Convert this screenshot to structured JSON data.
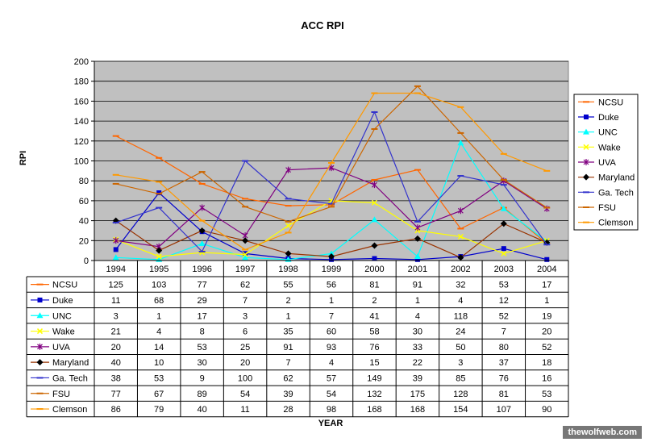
{
  "watermark": "thewolfweb.com",
  "chart_data": {
    "type": "line",
    "title": "ACC RPI",
    "xlabel": "YEAR",
    "ylabel": "RPI",
    "ylim": [
      0,
      200
    ],
    "yticks": [
      0,
      20,
      40,
      60,
      80,
      100,
      120,
      140,
      160,
      180,
      200
    ],
    "grid": true,
    "legend_position": "right",
    "plot_background": "#c0c0c0",
    "categories": [
      "1994",
      "1995",
      "1996",
      "1997",
      "1998",
      "1999",
      "2000",
      "2001",
      "2002",
      "2003",
      "2004"
    ],
    "series": [
      {
        "name": "NCSU",
        "color": "#ff6600",
        "marker": "dash",
        "values": [
          125,
          103,
          77,
          62,
          55,
          56,
          81,
          91,
          32,
          53,
          17
        ]
      },
      {
        "name": "Duke",
        "color": "#0000cc",
        "marker": "square",
        "values": [
          11,
          68,
          29,
          7,
          2,
          1,
          2,
          1,
          4,
          12,
          1
        ]
      },
      {
        "name": "UNC",
        "color": "#00ffff",
        "marker": "triangle",
        "values": [
          3,
          1,
          17,
          3,
          1,
          7,
          41,
          4,
          118,
          52,
          19
        ]
      },
      {
        "name": "Wake",
        "color": "#ffff00",
        "marker": "x",
        "values": [
          21,
          4,
          8,
          6,
          35,
          60,
          58,
          30,
          24,
          7,
          20
        ]
      },
      {
        "name": "UVA",
        "color": "#800080",
        "marker": "star",
        "values": [
          20,
          14,
          53,
          25,
          91,
          93,
          76,
          33,
          50,
          80,
          52
        ]
      },
      {
        "name": "Maryland",
        "color": "#993300",
        "marker": "diamond",
        "values": [
          40,
          10,
          30,
          20,
          7,
          4,
          15,
          22,
          3,
          37,
          18
        ]
      },
      {
        "name": "Ga. Tech",
        "color": "#3333cc",
        "marker": "dash",
        "values": [
          38,
          53,
          9,
          100,
          62,
          57,
          149,
          39,
          85,
          76,
          16
        ]
      },
      {
        "name": "FSU",
        "color": "#cc6600",
        "marker": "dash",
        "values": [
          77,
          67,
          89,
          54,
          39,
          54,
          132,
          175,
          128,
          81,
          53
        ]
      },
      {
        "name": "Clemson",
        "color": "#ff9900",
        "marker": "dash",
        "values": [
          86,
          79,
          40,
          11,
          28,
          98,
          168,
          168,
          154,
          107,
          90
        ]
      }
    ]
  }
}
